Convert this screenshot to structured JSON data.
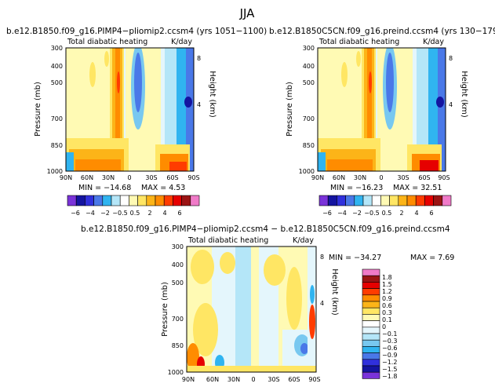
{
  "figure": {
    "season": "JJA"
  },
  "labels": {
    "y_pressure": "Pressure (mb)",
    "y_height": "Height (km)"
  },
  "colors": {
    "full_scale": [
      "#7a33d9",
      "#1414a0",
      "#3030dc",
      "#4a78e8",
      "#30b4f0",
      "#b4e6f8",
      "#ffffff",
      "#fffab4",
      "#ffe664",
      "#fcb418",
      "#ff8c00",
      "#ff3c00",
      "#e60000",
      "#9b1414",
      "#f07ac8"
    ],
    "diff_scale": [
      "#7a33d9",
      "#1414a0",
      "#3030dc",
      "#4a78e8",
      "#30b4f0",
      "#78c8f0",
      "#b4e6f8",
      "#e4f6fc",
      "#ffffff",
      "#fffab4",
      "#ffe664",
      "#fcb418",
      "#ff8c00",
      "#ff3c00",
      "#e60000",
      "#9b1414",
      "#f07ac8"
    ]
  },
  "chart_data": [
    {
      "type": "heatmap",
      "title": "b.e12.B1850.f09_g16.PIMP4−pliomip2.ccsm4 (yrs 1051−1100)",
      "subtitle_left": "Total diabatic heating",
      "subtitle_right": "K/day",
      "xlabel": "",
      "ylabel": "Pressure (mb)",
      "y2label": "Height (km)",
      "x_ticks": [
        "90N",
        "60N",
        "30N",
        "0",
        "30S",
        "60S",
        "90S"
      ],
      "y_ticks": [
        300,
        400,
        500,
        700,
        850,
        1000
      ],
      "height_ticks": [
        8,
        4
      ],
      "min_label": "MIN = −14.68",
      "max_label": "MAX =    4.53",
      "colorbar_levels": [
        "−6",
        "−4",
        "−2",
        "−0.5",
        "0.5",
        "2",
        "4",
        "6"
      ]
    },
    {
      "type": "heatmap",
      "title": "b.e12.B1850C5CN.f09_g16.preind.ccsm4 (yrs 130−179)",
      "subtitle_left": "Total diabatic heating",
      "subtitle_right": "K/day",
      "xlabel": "",
      "ylabel": "Pressure (mb)",
      "y2label": "Height (km)",
      "x_ticks": [
        "90N",
        "60N",
        "30N",
        "0",
        "30S",
        "60S",
        "90S"
      ],
      "y_ticks": [
        300,
        400,
        500,
        700,
        850,
        1000
      ],
      "height_ticks": [
        8,
        4
      ],
      "min_label": "MIN = −16.23",
      "max_label": "MAX =   32.51",
      "colorbar_levels": [
        "−6",
        "−4",
        "−2",
        "−0.5",
        "0.5",
        "2",
        "4",
        "6"
      ]
    },
    {
      "type": "heatmap",
      "title": "b.e12.B1850.f09_g16.PIMP4−pliomip2.ccsm4 − b.e12.B1850C5CN.f09_g16.preind.ccsm4",
      "subtitle_left": "Total diabatic heating",
      "subtitle_right": "K/day",
      "xlabel": "",
      "ylabel": "Pressure (mb)",
      "y2label": "Height (km)",
      "x_ticks": [
        "90N",
        "60N",
        "30N",
        "0",
        "30S",
        "60S",
        "90S"
      ],
      "y_ticks": [
        300,
        400,
        500,
        700,
        850,
        1000
      ],
      "height_ticks": [
        8,
        4
      ],
      "min_label": "MIN = −34.27",
      "max_label": "MAX =    7.69",
      "colorbar_levels": [
        "1.8",
        "1.5",
        "1.2",
        "0.9",
        "0.6",
        "0.3",
        "0.1",
        "0",
        "−0.1",
        "−0.3",
        "−0.6",
        "−0.9",
        "−1.2",
        "−1.5",
        "−1.8"
      ]
    }
  ]
}
